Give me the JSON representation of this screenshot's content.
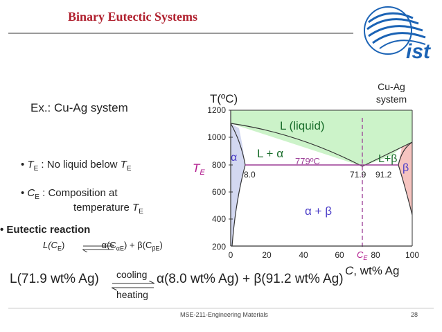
{
  "slide": {
    "title": "Binary Eutectic Systems",
    "example": "Ex.:  Cu-Ag system",
    "bullet_te": {
      "prefix": "T",
      "sub": "E",
      "text": " :  No liquid below ",
      "t": "T",
      "t_sub": "E"
    },
    "bullet_ce": {
      "prefix": "C",
      "sub": "E",
      "text": " :  Composition at",
      "line2": "temperature ",
      "t": "T",
      "t_sub": "E"
    },
    "eutectic_heading": "Eutectic reaction",
    "reaction_general": {
      "left": "L(C",
      "left_sub": "E",
      "right": "α(C",
      "alpha_sub": "αE",
      "plus": ") + β(C",
      "beta_sub": "βE",
      "close": ")"
    },
    "reaction_specific": {
      "left": "L(71.9 wt% Ag)",
      "right": "α(8.0 wt% Ag) + β(91.2 wt% Ag)",
      "cooling": "cooling",
      "heating": "heating"
    },
    "footer": "MSE-211-Engineering Materials",
    "page_number": "28",
    "logo": {
      "text": "ist",
      "color": "#1b63b5"
    }
  },
  "diagram": {
    "y_axis_label": "T(ºC)",
    "x_axis_label_c": "C",
    "x_axis_label_rest": ", wt% Ag",
    "system_label_1": "Cu-Ag",
    "system_label_2": "system",
    "y_ticks": [
      "1200",
      "1000",
      "800",
      "600",
      "400",
      "200"
    ],
    "x_ticks": [
      "0",
      "20",
      "40",
      "60",
      "80",
      "100"
    ],
    "ce_label": "C",
    "ce_sub": "E",
    "te_label": "T",
    "te_sub": "E",
    "regions": {
      "liquid": "L (liquid)",
      "alpha": "α",
      "l_plus_alpha": "L + α",
      "l_plus_beta": "L+β",
      "beta": "β",
      "alpha_plus_beta": "α + β"
    },
    "eutectic_temp_label": "779ºC",
    "comp_labels": {
      "alpha_e": "8.0",
      "eutectic": "71.9",
      "beta_e": "91.2"
    },
    "colors": {
      "liquid": "#ccf3c9",
      "alpha_region": "#d3d8f1",
      "beta_region": "#f6c4c0",
      "eutectic_line": "#9b3c96",
      "greek_labels": "#4a3cc7",
      "ce_label": "#b1198d"
    }
  }
}
